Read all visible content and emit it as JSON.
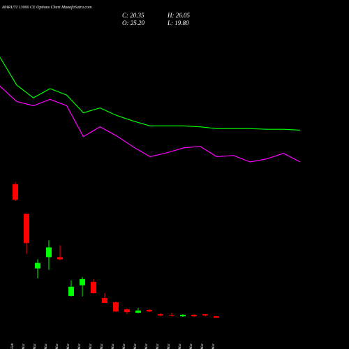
{
  "chart_data": {
    "type": "candlestick",
    "title": "MARUTI 13000  CE Options  Chart MunafaSutra.com",
    "info_labels": [
      "C: 20.35",
      "H: 26.05",
      "O: 25.20",
      "L: 19.80"
    ],
    "categories": [
      "27 Feb",
      "02 Mar",
      "04 Mar",
      "05 Mar",
      "06 Mar",
      "09 Mar",
      "10 Mar",
      "11 Mar",
      "12 Mar",
      "13 Mar",
      "16 Mar",
      "17 Mar",
      "18 Mar",
      "19 Mar",
      "20 Mar",
      "23 Mar",
      "24 Mar",
      "25 Mar",
      "27 Mar"
    ],
    "open": [
      458,
      361,
      182,
      219,
      219,
      92,
      127,
      138,
      85,
      71,
      48,
      37,
      46,
      32,
      30,
      25,
      30,
      32,
      25.2
    ],
    "high": [
      465,
      361,
      212,
      274,
      258,
      143,
      154,
      147,
      101,
      74,
      51,
      53,
      48,
      35,
      37,
      32,
      32,
      32,
      26.05
    ],
    "low": [
      403,
      230,
      150,
      177,
      209,
      90,
      90,
      99,
      69,
      39,
      32,
      35,
      39,
      25,
      25,
      23,
      23,
      25,
      19.8
    ],
    "close": [
      407,
      265,
      200,
      251,
      212,
      122,
      147,
      101,
      69,
      41,
      39,
      44,
      41,
      28,
      28,
      30,
      25,
      28,
      20.35
    ],
    "up_color": "#00ff00",
    "down_color": "#ff0000",
    "lines": [
      {
        "color": "#00ff00",
        "values": [
          874,
          783,
          741,
          771,
          750,
          692,
          708,
          683,
          665,
          649,
          649,
          649,
          646,
          640,
          640,
          640,
          638,
          638,
          635
        ]
      },
      {
        "color": "#ff00ff",
        "values": [
          779,
          729,
          715,
          736,
          715,
          614,
          646,
          616,
          580,
          548,
          561,
          577,
          582,
          548,
          552,
          531,
          541,
          559,
          531
        ]
      }
    ]
  }
}
